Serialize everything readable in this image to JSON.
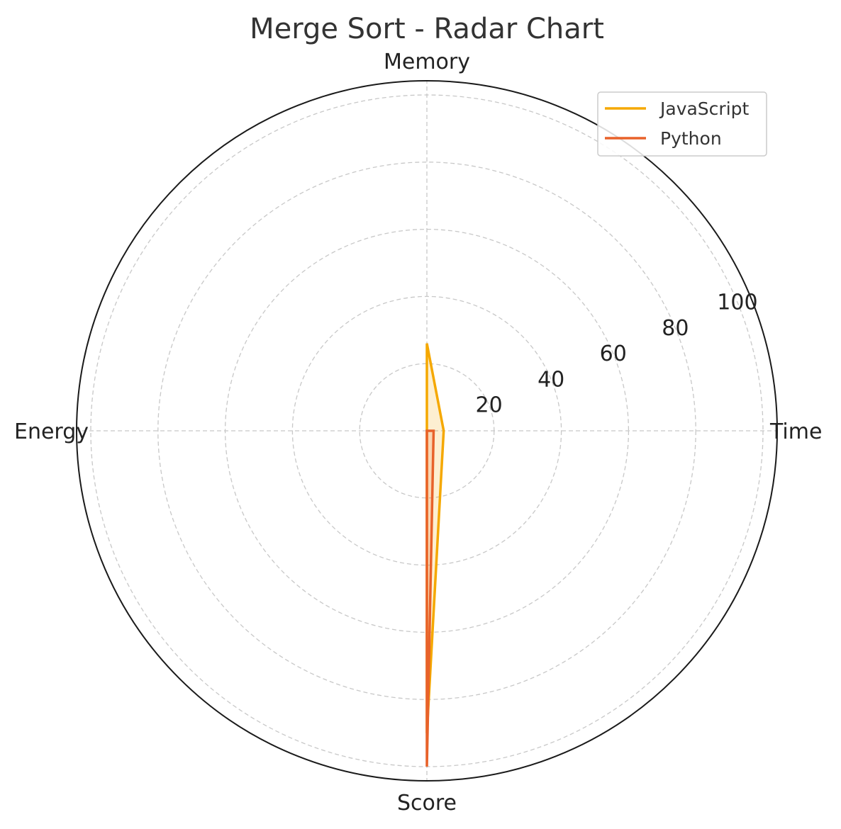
{
  "chart_data": {
    "type": "radar",
    "title": "Merge Sort - Radar Chart",
    "axes": [
      "Time",
      "Memory",
      "Energy",
      "Score"
    ],
    "rlim": [
      0,
      100
    ],
    "r_ticks": [
      20,
      40,
      60,
      80,
      100
    ],
    "grid": true,
    "legend_position": "top-right",
    "series": [
      {
        "name": "JavaScript",
        "color": "#f5a800",
        "values": [
          5,
          26,
          0,
          90
        ]
      },
      {
        "name": "Python",
        "color": "#e8622a",
        "values": [
          2,
          0,
          0,
          100
        ]
      }
    ]
  }
}
